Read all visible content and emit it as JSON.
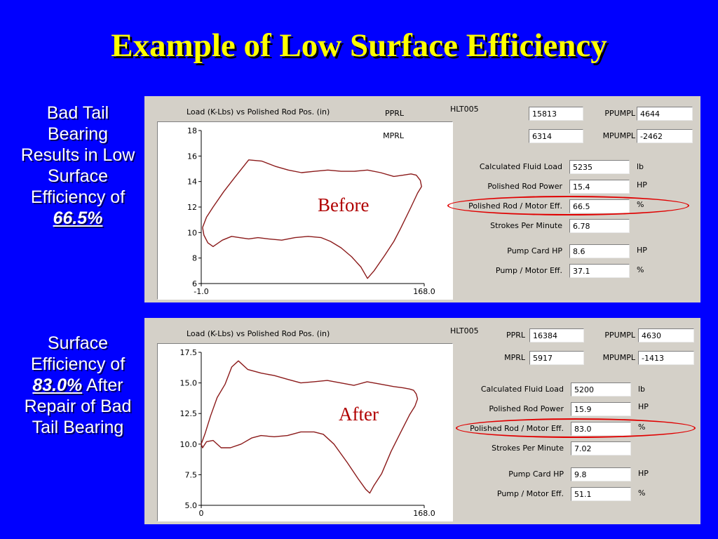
{
  "slide": {
    "title": "Example of Low Surface Efficiency"
  },
  "captions": {
    "before": {
      "text": "Bad Tail Bearing Results in Low Surface Efficiency of",
      "value": "66.5%"
    },
    "after": {
      "pre": "Surface Efficiency of",
      "value": "83.0%",
      "post": "After Repair of Bad Tail Bearing"
    }
  },
  "panels": [
    {
      "id": "before",
      "stamp": "Before",
      "plot_title": "Load (K-Lbs) vs Polished Rod Pos. (in)",
      "well": "HLT005",
      "fields": {
        "pprl": {
          "label": "PPRL",
          "value": "15813"
        },
        "ppumpl": {
          "label": "PPUMPL",
          "value": "4644"
        },
        "mprl": {
          "label": "MPRL",
          "value": "6314"
        },
        "mpumpl": {
          "label": "MPUMPL",
          "value": "-2462"
        },
        "fluid_load": {
          "label": "Calculated Fluid Load",
          "value": "5235",
          "unit": "lb"
        },
        "rod_power": {
          "label": "Polished Rod Power",
          "value": "15.4",
          "unit": "HP"
        },
        "rod_motor_eff": {
          "label": "Polished Rod / Motor Eff.",
          "value": "66.5",
          "unit": "%"
        },
        "spm": {
          "label": "Strokes Per Minute",
          "value": "6.78"
        },
        "pump_card_hp": {
          "label": "Pump Card HP",
          "value": "8.6",
          "unit": "HP"
        },
        "pump_motor_eff": {
          "label": "Pump / Motor Eff.",
          "value": "37.1",
          "unit": "%"
        }
      },
      "chart_data": {
        "type": "line",
        "title": "Load (K-Lbs) vs Polished Rod Pos. (in)",
        "xlim": [
          -1.0,
          168.0
        ],
        "x_tick_labels": [
          "-1.0",
          "168.0"
        ],
        "ylim": [
          6,
          18
        ],
        "y_ticks": [
          6,
          8,
          10,
          12,
          14,
          16,
          18
        ],
        "y_tick_labels": [
          "6",
          "8",
          "10",
          "12",
          "14",
          "16",
          "18"
        ],
        "grid": false,
        "series": [
          {
            "color": "#8b1a1a",
            "x": [
              0,
              3,
              8,
              16,
              25,
              35,
              45,
              55,
              65,
              75,
              85,
              95,
              105,
              115,
              125,
              135,
              145,
              152,
              158,
              162,
              165,
              166,
              163,
              158,
              150,
              145,
              138,
              130,
              125,
              120,
              113,
              105,
              97,
              90,
              80,
              70,
              60,
              50,
              42,
              35,
              28,
              22,
              15,
              8,
              4,
              1,
              0
            ],
            "y": [
              10.4,
              11.2,
              12.0,
              13.2,
              14.4,
              15.7,
              15.6,
              15.2,
              14.9,
              14.7,
              14.8,
              14.9,
              14.8,
              14.8,
              14.9,
              14.7,
              14.4,
              14.5,
              14.6,
              14.5,
              14.1,
              13.6,
              13.1,
              12.0,
              10.3,
              9.3,
              8.2,
              7.0,
              6.4,
              7.3,
              8.1,
              8.8,
              9.3,
              9.6,
              9.7,
              9.6,
              9.4,
              9.5,
              9.6,
              9.5,
              9.6,
              9.7,
              9.4,
              8.9,
              9.2,
              9.8,
              10.4
            ]
          }
        ]
      }
    },
    {
      "id": "after",
      "stamp": "After",
      "plot_title": "Load (K-Lbs) vs Polished Rod Pos. (in)",
      "well": "HLT005",
      "fields": {
        "pprl": {
          "label": "PPRL",
          "value": "16384"
        },
        "ppumpl": {
          "label": "PPUMPL",
          "value": "4630"
        },
        "mprl": {
          "label": "MPRL",
          "value": "5917"
        },
        "mpumpl": {
          "label": "MPUMPL",
          "value": "-1413"
        },
        "fluid_load": {
          "label": "Calculated Fluid Load",
          "value": "5200",
          "unit": "lb"
        },
        "rod_power": {
          "label": "Polished Rod Power",
          "value": "15.9",
          "unit": "HP"
        },
        "rod_motor_eff": {
          "label": "Polished Rod / Motor Eff.",
          "value": "83.0",
          "unit": "%"
        },
        "spm": {
          "label": "Strokes Per Minute",
          "value": "7.02"
        },
        "pump_card_hp": {
          "label": "Pump Card HP",
          "value": "9.8",
          "unit": "HP"
        },
        "pump_motor_eff": {
          "label": "Pump / Motor Eff.",
          "value": "51.1",
          "unit": "%"
        }
      },
      "chart_data": {
        "type": "line",
        "title": "Load (K-Lbs) vs Polished Rod Pos. (in)",
        "xlim": [
          0,
          168.0
        ],
        "x_tick_labels": [
          "0",
          "168.0"
        ],
        "ylim": [
          5.0,
          17.5
        ],
        "y_ticks": [
          5.0,
          7.5,
          10.0,
          12.5,
          15.0,
          17.5
        ],
        "y_tick_labels": [
          "5.0",
          "7.5",
          "10.0",
          "12.5",
          "15.0",
          "17.5"
        ],
        "grid": false,
        "series": [
          {
            "color": "#8b1a1a",
            "x": [
              0,
              3,
              7,
              12,
              18,
              23,
              28,
              35,
              45,
              55,
              65,
              75,
              85,
              95,
              105,
              115,
              125,
              135,
              145,
              152,
              157,
              160,
              162,
              163,
              161,
              157,
              150,
              143,
              136,
              130,
              127,
              124,
              118,
              110,
              100,
              92,
              85,
              75,
              65,
              55,
              45,
              38,
              30,
              22,
              15,
              9,
              4,
              1,
              0
            ],
            "y": [
              10.0,
              10.9,
              12.3,
              13.8,
              14.9,
              16.3,
              16.8,
              16.1,
              15.8,
              15.6,
              15.3,
              15.0,
              15.1,
              15.2,
              15.0,
              14.8,
              15.1,
              14.9,
              14.7,
              14.6,
              14.5,
              14.4,
              14.1,
              13.7,
              13.1,
              12.4,
              10.9,
              9.4,
              7.6,
              6.6,
              6.0,
              6.3,
              7.2,
              8.5,
              10.0,
              10.8,
              11.0,
              11.0,
              10.7,
              10.6,
              10.7,
              10.5,
              10.0,
              9.7,
              9.7,
              10.3,
              10.2,
              9.7,
              10.0
            ]
          }
        ]
      }
    }
  ]
}
